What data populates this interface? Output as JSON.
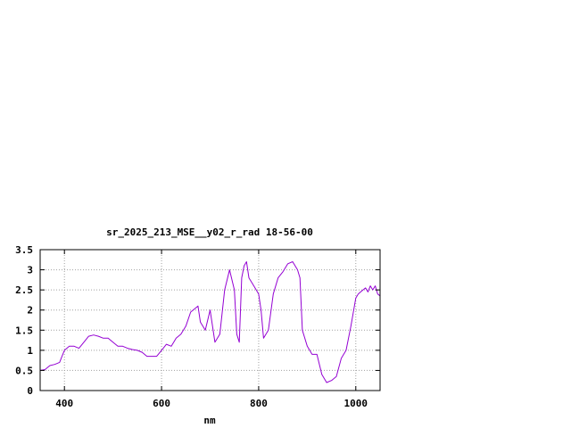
{
  "chart_data": {
    "type": "line",
    "title": "sr_2025_213_MSE__y02_r_rad 18-56-00",
    "xlabel": "nm",
    "ylabel": "",
    "xlim": [
      350,
      1050
    ],
    "ylim": [
      0,
      3.5
    ],
    "grid": true,
    "x_ticks": [
      400,
      600,
      800,
      1000
    ],
    "y_ticks": [
      0,
      0.5,
      1,
      1.5,
      2,
      2.5,
      3,
      3.5
    ],
    "x_tick_labels": [
      "400",
      "600",
      "800",
      "1000"
    ],
    "y_tick_labels": [
      "0",
      "0.5",
      "1",
      "1.5",
      "2",
      "2.5",
      "3",
      "3.5"
    ],
    "series": [
      {
        "color": "#9400d3",
        "x": [
          350,
          360,
          370,
          380,
          390,
          395,
          400,
          410,
          420,
          430,
          440,
          450,
          460,
          470,
          480,
          490,
          500,
          510,
          520,
          530,
          540,
          550,
          560,
          570,
          580,
          590,
          600,
          610,
          620,
          630,
          640,
          650,
          660,
          670,
          675,
          680,
          690,
          700,
          710,
          720,
          730,
          740,
          750,
          755,
          760,
          765,
          770,
          775,
          780,
          790,
          800,
          805,
          810,
          820,
          830,
          840,
          850,
          860,
          870,
          880,
          885,
          890,
          900,
          910,
          920,
          930,
          940,
          950,
          960,
          970,
          980,
          990,
          1000,
          1005,
          1010,
          1015,
          1020,
          1025,
          1030,
          1035,
          1040,
          1045,
          1050
        ],
        "y": [
          0.5,
          0.52,
          0.62,
          0.65,
          0.7,
          0.85,
          1.0,
          1.1,
          1.1,
          1.05,
          1.2,
          1.35,
          1.38,
          1.35,
          1.3,
          1.3,
          1.2,
          1.1,
          1.1,
          1.05,
          1.02,
          1.0,
          0.95,
          0.85,
          0.85,
          0.85,
          1.0,
          1.15,
          1.1,
          1.3,
          1.4,
          1.6,
          1.95,
          2.05,
          2.1,
          1.7,
          1.5,
          2.0,
          1.2,
          1.4,
          2.5,
          3.0,
          2.5,
          1.4,
          1.2,
          2.8,
          3.1,
          3.2,
          2.8,
          2.6,
          2.4,
          2.0,
          1.3,
          1.5,
          2.4,
          2.8,
          2.95,
          3.15,
          3.2,
          3.0,
          2.8,
          1.5,
          1.1,
          0.9,
          0.9,
          0.4,
          0.2,
          0.25,
          0.35,
          0.8,
          1.0,
          1.6,
          2.3,
          2.4,
          2.45,
          2.5,
          2.55,
          2.45,
          2.6,
          2.5,
          2.6,
          2.4,
          2.35
        ]
      }
    ]
  }
}
